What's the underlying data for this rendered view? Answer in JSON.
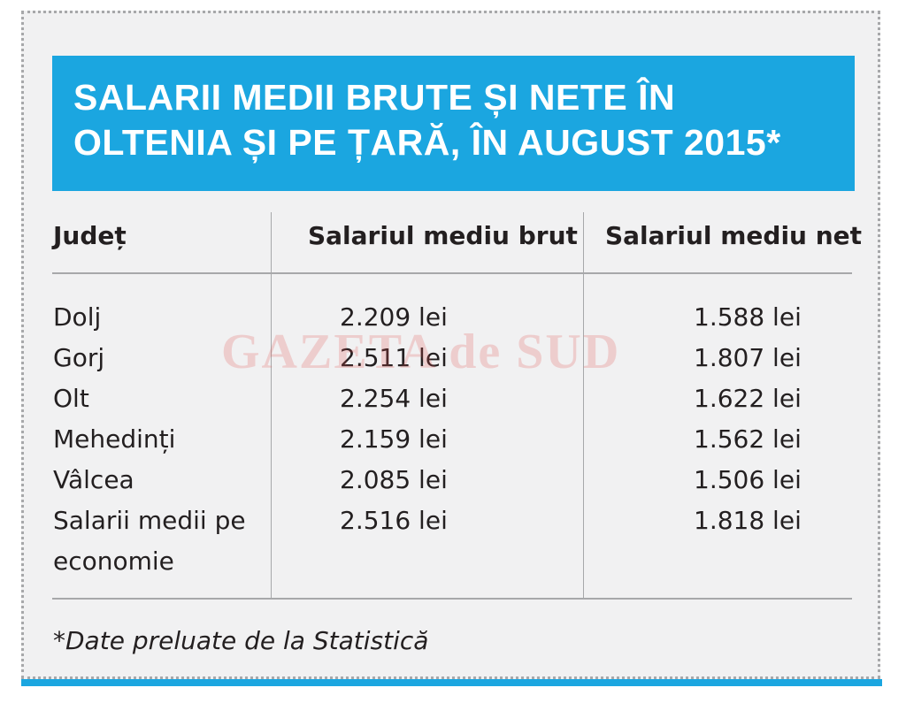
{
  "title": "SALARII MEDII BRUTE ȘI NETE ÎN OLTENIA ȘI PE ȚARĂ, ÎN AUGUST 2015*",
  "table": {
    "headers": [
      "Județ",
      "Salariul mediu brut",
      "Salariul mediu net"
    ],
    "rows": [
      {
        "county": "Dolj",
        "gross": "2.209 lei",
        "net": "1.588 lei"
      },
      {
        "county": "Gorj",
        "gross": "2.511 lei",
        "net": "1.807 lei"
      },
      {
        "county": "Olt",
        "gross": "2.254 lei",
        "net": "1.622 lei"
      },
      {
        "county": "Mehedinți",
        "gross": "2.159 lei",
        "net": "1.562 lei"
      },
      {
        "county": "Vâlcea",
        "gross": "2.085 lei",
        "net": "1.506 lei"
      },
      {
        "county": "Salarii medii pe economie",
        "gross": "2.516 lei",
        "net": "1.818 lei"
      }
    ]
  },
  "watermark": "GAZETA de SUD",
  "footnote": "*Date preluate de la Statistică",
  "colors": {
    "accent": "#1ba6e0",
    "panel": "#f1f1f2",
    "text": "#231f20",
    "watermark": "#e05050"
  }
}
